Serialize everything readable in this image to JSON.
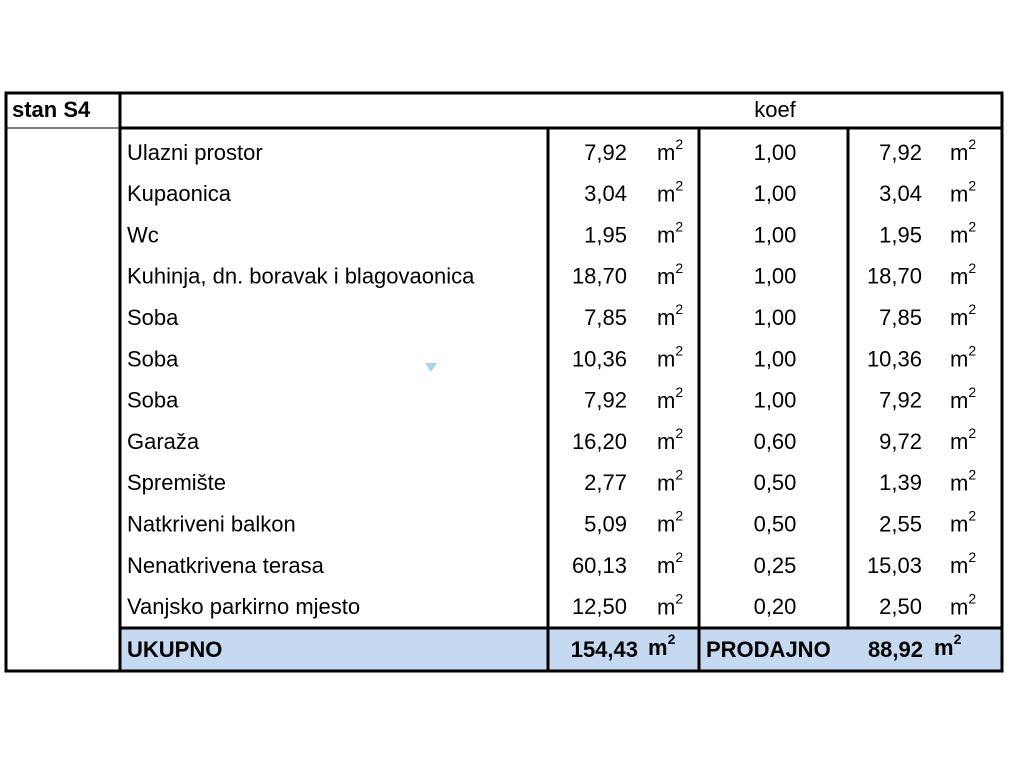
{
  "table": {
    "apartment": "stan S4",
    "coef_header": "koef",
    "unit": "m",
    "unit_exponent": "2",
    "rows": [
      {
        "name": "Ulazni prostor",
        "area": "7,92",
        "koef": "1,00",
        "sellable": "7,92"
      },
      {
        "name": "Kupaonica",
        "area": "3,04",
        "koef": "1,00",
        "sellable": "3,04"
      },
      {
        "name": "Wc",
        "area": "1,95",
        "koef": "1,00",
        "sellable": "1,95"
      },
      {
        "name": "Kuhinja, dn. boravak i blagovaonica",
        "area": "18,70",
        "koef": "1,00",
        "sellable": "18,70"
      },
      {
        "name": "Soba",
        "area": "7,85",
        "koef": "1,00",
        "sellable": "7,85"
      },
      {
        "name": "Soba",
        "area": "10,36",
        "koef": "1,00",
        "sellable": "10,36"
      },
      {
        "name": "Soba",
        "area": "7,92",
        "koef": "1,00",
        "sellable": "7,92"
      },
      {
        "name": "Garaža",
        "area": "16,20",
        "koef": "0,60",
        "sellable": "9,72"
      },
      {
        "name": "Spremište",
        "area": "2,77",
        "koef": "0,50",
        "sellable": "1,39"
      },
      {
        "name": "Natkriveni balkon",
        "area": "5,09",
        "koef": "0,50",
        "sellable": "2,55"
      },
      {
        "name": "Nenatkrivena terasa",
        "area": "60,13",
        "koef": "0,25",
        "sellable": "15,03"
      },
      {
        "name": "Vanjsko parkirno mjesto",
        "area": "12,50",
        "koef": "0,20",
        "sellable": "2,50"
      }
    ],
    "total": {
      "label": "UKUPNO",
      "area": "154,43",
      "sellable_label": "PRODAJNO",
      "sellable": "88,92"
    }
  }
}
